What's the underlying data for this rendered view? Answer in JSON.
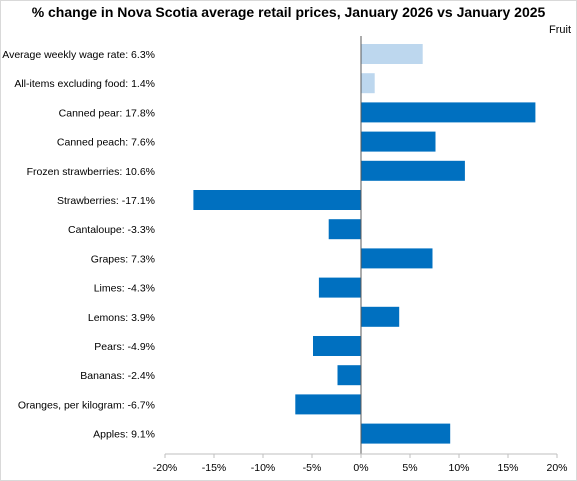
{
  "chart_data": {
    "type": "bar",
    "orientation": "horizontal",
    "title": "% change in Nova Scotia average retail prices, January 2026 vs January 2025",
    "subtitle": "Fruit",
    "categories": [
      "Average weekly wage rate: 6.3%",
      "All-items excluding food: 1.4%",
      "Canned pear: 17.8%",
      "Canned peach: 7.6%",
      "Frozen strawberries: 10.6%",
      "Strawberries: -17.1%",
      "Cantaloupe: -3.3%",
      "Grapes: 7.3%",
      "Limes: -4.3%",
      "Lemons: 3.9%",
      "Pears: -4.9%",
      "Bananas: -2.4%",
      "Oranges, per kilogram: -6.7%",
      "Apples: 9.1%"
    ],
    "values": [
      6.3,
      1.4,
      17.8,
      7.6,
      10.6,
      -17.1,
      -3.3,
      7.3,
      -4.3,
      3.9,
      -4.9,
      -2.4,
      -6.7,
      9.1
    ],
    "bar_colors": [
      "#bdd7ee",
      "#bdd7ee",
      "#0070c0",
      "#0070c0",
      "#0070c0",
      "#0070c0",
      "#0070c0",
      "#0070c0",
      "#0070c0",
      "#0070c0",
      "#0070c0",
      "#0070c0",
      "#0070c0",
      "#0070c0"
    ],
    "xlim": [
      -20,
      20
    ],
    "x_ticks": [
      "-20%",
      "-15%",
      "-10%",
      "-5%",
      "0%",
      "5%",
      "10%",
      "15%",
      "20%"
    ],
    "grid": false,
    "legend": "none"
  }
}
